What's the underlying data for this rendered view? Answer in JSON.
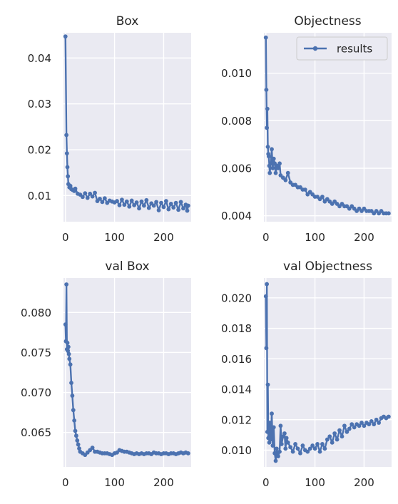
{
  "colors": {
    "series": "#4c72b0",
    "panel_background": "#eaeaf2",
    "grid": "#ffffff"
  },
  "chart_data": [
    {
      "type": "line",
      "title": "Box",
      "xlim": [
        -4,
        256
      ],
      "ylim": [
        0.0043,
        0.0455
      ],
      "x_ticks": [
        0,
        100,
        200
      ],
      "x_tick_labels": [
        "0",
        "100",
        "200"
      ],
      "y_ticks": [
        0.01,
        0.02,
        0.03,
        0.04
      ],
      "y_tick_labels": [
        "0.01",
        "0.02",
        "0.03",
        "0.04"
      ],
      "grid": true,
      "series": [
        {
          "points": [
            [
              0,
              0.0447
            ],
            [
              2,
              0.0232
            ],
            [
              3,
              0.0192
            ],
            [
              4,
              0.0162
            ],
            [
              5,
              0.0142
            ],
            [
              6,
              0.0125
            ],
            [
              8,
              0.0118
            ],
            [
              10,
              0.0121
            ],
            [
              12,
              0.0114
            ],
            [
              15,
              0.0112
            ],
            [
              18,
              0.011
            ],
            [
              20,
              0.0115
            ],
            [
              25,
              0.0104
            ],
            [
              30,
              0.0102
            ],
            [
              35,
              0.0097
            ],
            [
              40,
              0.0105
            ],
            [
              45,
              0.0095
            ],
            [
              50,
              0.0104
            ],
            [
              55,
              0.0098
            ],
            [
              60,
              0.0106
            ],
            [
              65,
              0.0088
            ],
            [
              70,
              0.0093
            ],
            [
              75,
              0.0086
            ],
            [
              80,
              0.0094
            ],
            [
              85,
              0.0084
            ],
            [
              90,
              0.0089
            ],
            [
              95,
              0.0087
            ],
            [
              100,
              0.0085
            ],
            [
              105,
              0.0088
            ],
            [
              110,
              0.0079
            ],
            [
              115,
              0.0091
            ],
            [
              120,
              0.008
            ],
            [
              125,
              0.0087
            ],
            [
              130,
              0.0076
            ],
            [
              135,
              0.0089
            ],
            [
              140,
              0.0079
            ],
            [
              145,
              0.0085
            ],
            [
              150,
              0.0072
            ],
            [
              155,
              0.0087
            ],
            [
              160,
              0.0078
            ],
            [
              165,
              0.009
            ],
            [
              170,
              0.0073
            ],
            [
              175,
              0.0083
            ],
            [
              180,
              0.0078
            ],
            [
              185,
              0.0086
            ],
            [
              190,
              0.0068
            ],
            [
              195,
              0.0084
            ],
            [
              200,
              0.0075
            ],
            [
              205,
              0.0088
            ],
            [
              210,
              0.007
            ],
            [
              215,
              0.0082
            ],
            [
              220,
              0.0074
            ],
            [
              225,
              0.0084
            ],
            [
              230,
              0.0069
            ],
            [
              235,
              0.0086
            ],
            [
              240,
              0.0072
            ],
            [
              245,
              0.008
            ],
            [
              248,
              0.0067
            ],
            [
              250,
              0.0078
            ]
          ]
        }
      ]
    },
    {
      "type": "line",
      "title": "Objectness",
      "xlim": [
        -4,
        256
      ],
      "ylim": [
        0.00375,
        0.0117
      ],
      "x_ticks": [
        0,
        100,
        200
      ],
      "x_tick_labels": [
        "0",
        "100",
        "200"
      ],
      "y_ticks": [
        0.004,
        0.006,
        0.008,
        0.01
      ],
      "y_tick_labels": [
        "0.004",
        "0.006",
        "0.008",
        "0.010"
      ],
      "grid": true,
      "legend": {
        "entries": [
          "results"
        ],
        "placement": "upper right"
      },
      "series": [
        {
          "name": "results",
          "points": [
            [
              0,
              0.0115
            ],
            [
              1,
              0.0093
            ],
            [
              2,
              0.0077
            ],
            [
              3,
              0.0085
            ],
            [
              4,
              0.0069
            ],
            [
              5,
              0.0066
            ],
            [
              6,
              0.0065
            ],
            [
              7,
              0.0061
            ],
            [
              8,
              0.0058
            ],
            [
              10,
              0.0062
            ],
            [
              12,
              0.0068
            ],
            [
              14,
              0.006
            ],
            [
              16,
              0.0064
            ],
            [
              18,
              0.0062
            ],
            [
              20,
              0.0058
            ],
            [
              22,
              0.0061
            ],
            [
              25,
              0.006
            ],
            [
              28,
              0.0062
            ],
            [
              30,
              0.0057
            ],
            [
              35,
              0.0056
            ],
            [
              40,
              0.0055
            ],
            [
              45,
              0.0058
            ],
            [
              50,
              0.0054
            ],
            [
              55,
              0.0053
            ],
            [
              60,
              0.0053
            ],
            [
              65,
              0.0052
            ],
            [
              70,
              0.0052
            ],
            [
              75,
              0.0051
            ],
            [
              80,
              0.0051
            ],
            [
              85,
              0.0049
            ],
            [
              90,
              0.005
            ],
            [
              95,
              0.0049
            ],
            [
              100,
              0.0048
            ],
            [
              105,
              0.0048
            ],
            [
              110,
              0.0047
            ],
            [
              115,
              0.0048
            ],
            [
              120,
              0.0046
            ],
            [
              125,
              0.0047
            ],
            [
              130,
              0.0046
            ],
            [
              135,
              0.0045
            ],
            [
              140,
              0.0046
            ],
            [
              145,
              0.0045
            ],
            [
              150,
              0.0044
            ],
            [
              155,
              0.0045
            ],
            [
              160,
              0.0044
            ],
            [
              165,
              0.0044
            ],
            [
              170,
              0.0043
            ],
            [
              175,
              0.0044
            ],
            [
              180,
              0.0043
            ],
            [
              185,
              0.0042
            ],
            [
              190,
              0.0043
            ],
            [
              195,
              0.0042
            ],
            [
              200,
              0.0043
            ],
            [
              205,
              0.0042
            ],
            [
              210,
              0.0042
            ],
            [
              215,
              0.0042
            ],
            [
              220,
              0.0041
            ],
            [
              225,
              0.0042
            ],
            [
              230,
              0.0041
            ],
            [
              235,
              0.0042
            ],
            [
              240,
              0.0041
            ],
            [
              245,
              0.0041
            ],
            [
              250,
              0.0041
            ]
          ]
        }
      ]
    },
    {
      "type": "line",
      "title": "val Box",
      "xlim": [
        -4,
        256
      ],
      "ylim": [
        0.0607,
        0.0843
      ],
      "x_ticks": [
        0,
        100,
        200
      ],
      "x_tick_labels": [
        "0",
        "100",
        "200"
      ],
      "y_ticks": [
        0.065,
        0.07,
        0.075,
        0.08
      ],
      "y_tick_labels": [
        "0.065",
        "0.070",
        "0.075",
        "0.080"
      ],
      "grid": true,
      "series": [
        {
          "points": [
            [
              0,
              0.0785
            ],
            [
              1,
              0.0764
            ],
            [
              2,
              0.0835
            ],
            [
              3,
              0.0754
            ],
            [
              4,
              0.0762
            ],
            [
              5,
              0.0752
            ],
            [
              6,
              0.0757
            ],
            [
              7,
              0.0748
            ],
            [
              8,
              0.0742
            ],
            [
              10,
              0.0735
            ],
            [
              12,
              0.0712
            ],
            [
              14,
              0.0696
            ],
            [
              16,
              0.0678
            ],
            [
              18,
              0.0665
            ],
            [
              20,
              0.0652
            ],
            [
              22,
              0.0646
            ],
            [
              24,
              0.064
            ],
            [
              26,
              0.0635
            ],
            [
              28,
              0.063
            ],
            [
              30,
              0.0626
            ],
            [
              35,
              0.0624
            ],
            [
              40,
              0.0622
            ],
            [
              45,
              0.0625
            ],
            [
              50,
              0.0628
            ],
            [
              55,
              0.0631
            ],
            [
              60,
              0.0626
            ],
            [
              65,
              0.0626
            ],
            [
              70,
              0.0625
            ],
            [
              75,
              0.0624
            ],
            [
              80,
              0.0624
            ],
            [
              85,
              0.0624
            ],
            [
              90,
              0.0623
            ],
            [
              95,
              0.0622
            ],
            [
              100,
              0.0624
            ],
            [
              105,
              0.0625
            ],
            [
              110,
              0.0628
            ],
            [
              115,
              0.0627
            ],
            [
              120,
              0.0626
            ],
            [
              125,
              0.0626
            ],
            [
              130,
              0.0625
            ],
            [
              135,
              0.0624
            ],
            [
              140,
              0.0623
            ],
            [
              145,
              0.0624
            ],
            [
              150,
              0.0623
            ],
            [
              155,
              0.0624
            ],
            [
              160,
              0.0623
            ],
            [
              165,
              0.0624
            ],
            [
              170,
              0.0624
            ],
            [
              175,
              0.0623
            ],
            [
              180,
              0.0625
            ],
            [
              185,
              0.0624
            ],
            [
              190,
              0.0624
            ],
            [
              195,
              0.0623
            ],
            [
              200,
              0.0624
            ],
            [
              205,
              0.0624
            ],
            [
              210,
              0.0623
            ],
            [
              215,
              0.0624
            ],
            [
              220,
              0.0624
            ],
            [
              225,
              0.0623
            ],
            [
              230,
              0.0624
            ],
            [
              235,
              0.0625
            ],
            [
              240,
              0.0624
            ],
            [
              245,
              0.0625
            ],
            [
              250,
              0.0624
            ]
          ]
        }
      ]
    },
    {
      "type": "line",
      "title": "val Objectness",
      "xlim": [
        -4,
        256
      ],
      "ylim": [
        0.0089,
        0.0213
      ],
      "x_ticks": [
        0,
        100,
        200
      ],
      "x_tick_labels": [
        "0",
        "100",
        "200"
      ],
      "y_ticks": [
        0.01,
        0.012,
        0.014,
        0.016,
        0.018,
        0.02
      ],
      "y_tick_labels": [
        "0.010",
        "0.012",
        "0.014",
        "0.016",
        "0.018",
        "0.020"
      ],
      "grid": true,
      "series": [
        {
          "points": [
            [
              0,
              0.0201
            ],
            [
              1,
              0.0167
            ],
            [
              2,
              0.0209
            ],
            [
              3,
              0.0112
            ],
            [
              4,
              0.0143
            ],
            [
              5,
              0.0108
            ],
            [
              6,
              0.0113
            ],
            [
              7,
              0.0105
            ],
            [
              8,
              0.0118
            ],
            [
              10,
              0.0107
            ],
            [
              12,
              0.0124
            ],
            [
              14,
              0.0103
            ],
            [
              16,
              0.0115
            ],
            [
              18,
              0.0098
            ],
            [
              20,
              0.0093
            ],
            [
              22,
              0.0101
            ],
            [
              25,
              0.0096
            ],
            [
              28,
              0.0099
            ],
            [
              30,
              0.0116
            ],
            [
              32,
              0.0104
            ],
            [
              35,
              0.0109
            ],
            [
              38,
              0.0111
            ],
            [
              40,
              0.0101
            ],
            [
              42,
              0.0108
            ],
            [
              45,
              0.0105
            ],
            [
              50,
              0.0102
            ],
            [
              55,
              0.0099
            ],
            [
              60,
              0.0104
            ],
            [
              65,
              0.0101
            ],
            [
              70,
              0.0098
            ],
            [
              75,
              0.0103
            ],
            [
              80,
              0.01
            ],
            [
              85,
              0.0099
            ],
            [
              90,
              0.0101
            ],
            [
              95,
              0.0103
            ],
            [
              100,
              0.0101
            ],
            [
              105,
              0.0104
            ],
            [
              110,
              0.0099
            ],
            [
              115,
              0.0104
            ],
            [
              120,
              0.0101
            ],
            [
              125,
              0.0107
            ],
            [
              130,
              0.0109
            ],
            [
              135,
              0.0105
            ],
            [
              140,
              0.0111
            ],
            [
              145,
              0.0107
            ],
            [
              150,
              0.0113
            ],
            [
              155,
              0.0109
            ],
            [
              160,
              0.0116
            ],
            [
              165,
              0.0112
            ],
            [
              170,
              0.0114
            ],
            [
              175,
              0.0117
            ],
            [
              180,
              0.0115
            ],
            [
              185,
              0.0117
            ],
            [
              190,
              0.0116
            ],
            [
              195,
              0.0118
            ],
            [
              200,
              0.0116
            ],
            [
              205,
              0.0118
            ],
            [
              210,
              0.0117
            ],
            [
              215,
              0.0119
            ],
            [
              220,
              0.0117
            ],
            [
              225,
              0.012
            ],
            [
              230,
              0.0118
            ],
            [
              235,
              0.0121
            ],
            [
              240,
              0.0122
            ],
            [
              245,
              0.0121
            ],
            [
              250,
              0.0122
            ]
          ]
        }
      ]
    }
  ]
}
